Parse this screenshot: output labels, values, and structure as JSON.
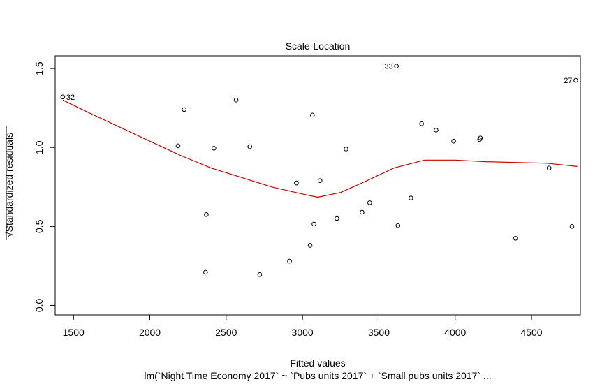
{
  "chart_data": {
    "type": "scatter",
    "title": "Scale-Location",
    "xlabel": "Fitted values",
    "subtitle": "lm(`Night Time Economy 2017` ~ `Pubs units 2017` + `Small pubs units 2017`  ...",
    "ylabel_radical": "√",
    "ylabel": "Standardized residuals",
    "xlim": [
      1380,
      4820
    ],
    "ylim": [
      -0.06,
      1.58
    ],
    "x_ticks": [
      1500,
      2000,
      2500,
      3000,
      3500,
      4000,
      4500
    ],
    "x_tick_labels": [
      "1500",
      "2000",
      "2500",
      "3000",
      "3500",
      "4000",
      "4500"
    ],
    "y_ticks": [
      0.0,
      0.5,
      1.0,
      1.5
    ],
    "y_tick_labels": [
      "0.0",
      "0.5",
      "1.0",
      "1.5"
    ],
    "grid": false,
    "points": [
      {
        "x": 1430,
        "y": 1.32,
        "label": "32"
      },
      {
        "x": 2185,
        "y": 1.01,
        "label": ""
      },
      {
        "x": 2225,
        "y": 1.24,
        "label": ""
      },
      {
        "x": 2365,
        "y": 0.21,
        "label": ""
      },
      {
        "x": 2370,
        "y": 0.575,
        "label": ""
      },
      {
        "x": 2420,
        "y": 0.995,
        "label": ""
      },
      {
        "x": 2565,
        "y": 1.3,
        "label": ""
      },
      {
        "x": 2655,
        "y": 1.005,
        "label": ""
      },
      {
        "x": 2720,
        "y": 0.195,
        "label": ""
      },
      {
        "x": 2915,
        "y": 0.28,
        "label": ""
      },
      {
        "x": 2960,
        "y": 0.775,
        "label": ""
      },
      {
        "x": 3050,
        "y": 0.38,
        "label": ""
      },
      {
        "x": 3065,
        "y": 1.205,
        "label": ""
      },
      {
        "x": 3075,
        "y": 0.515,
        "label": ""
      },
      {
        "x": 3115,
        "y": 0.79,
        "label": ""
      },
      {
        "x": 3225,
        "y": 0.55,
        "label": ""
      },
      {
        "x": 3285,
        "y": 0.99,
        "label": ""
      },
      {
        "x": 3390,
        "y": 0.59,
        "label": ""
      },
      {
        "x": 3440,
        "y": 0.65,
        "label": ""
      },
      {
        "x": 3615,
        "y": 1.515,
        "label": "33"
      },
      {
        "x": 3625,
        "y": 0.505,
        "label": ""
      },
      {
        "x": 3710,
        "y": 0.68,
        "label": ""
      },
      {
        "x": 3780,
        "y": 1.15,
        "label": ""
      },
      {
        "x": 3875,
        "y": 1.11,
        "label": ""
      },
      {
        "x": 3990,
        "y": 1.04,
        "label": ""
      },
      {
        "x": 4160,
        "y": 1.05,
        "label": ""
      },
      {
        "x": 4165,
        "y": 1.06,
        "label": ""
      },
      {
        "x": 4395,
        "y": 0.425,
        "label": ""
      },
      {
        "x": 4615,
        "y": 0.87,
        "label": ""
      },
      {
        "x": 4765,
        "y": 0.5,
        "label": ""
      },
      {
        "x": 4790,
        "y": 1.425,
        "label": "27"
      }
    ],
    "smooth_line": {
      "color": "#cc0000",
      "x": [
        1430,
        1600,
        1800,
        2000,
        2200,
        2400,
        2600,
        2800,
        3000,
        3100,
        3250,
        3400,
        3600,
        3800,
        4000,
        4200,
        4400,
        4600,
        4800
      ],
      "y": [
        1.3,
        1.22,
        1.13,
        1.04,
        0.95,
        0.87,
        0.81,
        0.75,
        0.705,
        0.685,
        0.715,
        0.78,
        0.87,
        0.92,
        0.92,
        0.91,
        0.905,
        0.9,
        0.88
      ]
    }
  }
}
